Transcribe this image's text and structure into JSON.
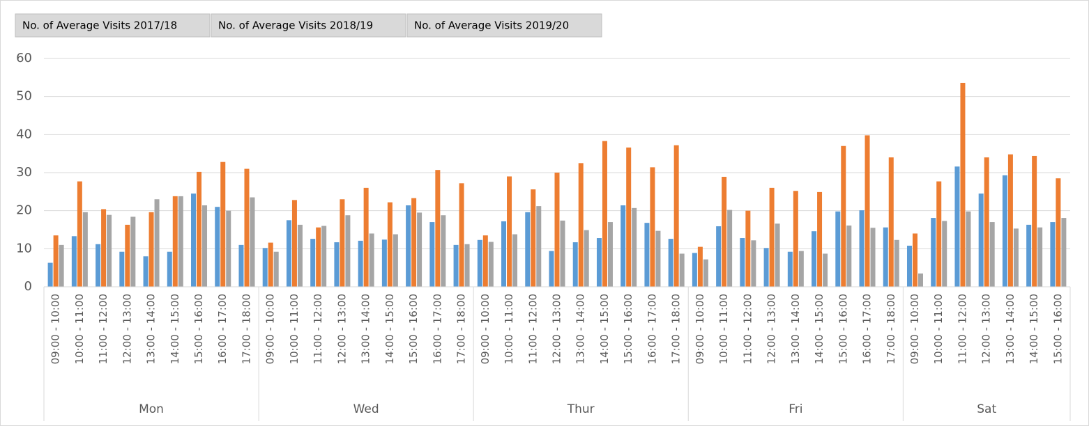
{
  "chart_data": {
    "type": "bar",
    "series": [
      {
        "name": "No. of Average Visits 2017/18",
        "color": "#5b9bd5",
        "values": [
          [
            6.3,
            13.3,
            11.2,
            9.2,
            8,
            9.2,
            24.5,
            21,
            11
          ],
          [
            10.2,
            17.5,
            12.6,
            11.7,
            12.1,
            12.4,
            21.4,
            17,
            11
          ],
          [
            12.3,
            17.2,
            19.6,
            9.4,
            11.7,
            12.8,
            21.4,
            16.8,
            12.6
          ],
          [
            8.9,
            15.9,
            12.8,
            10.2,
            9.2,
            14.6,
            19.8,
            20.1,
            15.6
          ],
          [
            10.8,
            18.1,
            31.6,
            24.5,
            29.3,
            16.3,
            17
          ]
        ]
      },
      {
        "name": "No. of Average Visits 2018/19",
        "color": "#ed7d31",
        "values": [
          [
            13.5,
            27.7,
            20.4,
            16.3,
            19.6,
            23.8,
            30.2,
            32.8,
            31
          ],
          [
            11.6,
            22.8,
            15.6,
            23,
            26,
            22.2,
            23.3,
            30.7,
            27.2
          ],
          [
            13.5,
            29,
            25.6,
            30,
            32.5,
            38.3,
            36.6,
            31.4,
            37.2
          ],
          [
            10.5,
            28.9,
            20,
            26,
            25.2,
            24.9,
            37,
            39.8,
            34
          ],
          [
            14,
            27.7,
            53.6,
            34,
            34.8,
            34.4,
            28.5
          ]
        ]
      },
      {
        "name": "No. of Average Visits 2019/20",
        "color": "#a5a5a5",
        "values": [
          [
            11,
            19.6,
            18.9,
            18.4,
            23,
            23.8,
            21.4,
            20,
            23.5
          ],
          [
            9.2,
            16.3,
            16,
            18.8,
            14,
            13.8,
            19.5,
            18.8,
            11.2
          ],
          [
            11.8,
            13.8,
            21.2,
            17.4,
            14.9,
            17,
            20.7,
            14.7,
            8.7
          ],
          [
            7.2,
            20.2,
            12.2,
            16.6,
            9.4,
            8.7,
            16.1,
            15.5,
            12.3
          ],
          [
            3.5,
            17.3,
            19.8,
            17,
            15.3,
            15.6,
            18.1
          ]
        ]
      }
    ],
    "groups": [
      {
        "name": "Mon",
        "categories": [
          "09:00 - 10:00",
          "10:00 - 11:00",
          "11:00 - 12:00",
          "12:00 - 13:00",
          "13:00 - 14:00",
          "14:00 - 15:00",
          "15:00 - 16:00",
          "16:00 - 17:00",
          "17:00 - 18:00"
        ]
      },
      {
        "name": "Wed",
        "categories": [
          "09:00 - 10:00",
          "10:00 - 11:00",
          "11:00 - 12:00",
          "12:00 - 13:00",
          "13:00 - 14:00",
          "14:00 - 15:00",
          "15:00 - 16:00",
          "16:00 - 17:00",
          "17:00 - 18:00"
        ]
      },
      {
        "name": "Thur",
        "categories": [
          "09:00 - 10:00",
          "10:00 - 11:00",
          "11:00 - 12:00",
          "12:00 - 13:00",
          "13:00 - 14:00",
          "14:00 - 15:00",
          "15:00 - 16:00",
          "16:00 - 17:00",
          "17:00 - 18:00"
        ]
      },
      {
        "name": "Fri",
        "categories": [
          "09:00 - 10:00",
          "10:00 - 11:00",
          "11:00 - 12:00",
          "12:00 - 13:00",
          "13:00 - 14:00",
          "14:00 - 15:00",
          "15:00 - 16:00",
          "16:00 - 17:00",
          "17:00 - 18:00"
        ]
      },
      {
        "name": "Sat",
        "categories": [
          "09:00 - 10:00",
          "10:00 - 11:00",
          "11:00 - 12:00",
          "12:00 - 13:00",
          "13:00 - 14:00",
          "14:00 - 15:00",
          "15:00 - 16:00"
        ]
      }
    ],
    "ylim": [
      0,
      60
    ],
    "yticks": [
      0,
      10,
      20,
      30,
      40,
      50,
      60
    ],
    "grid": true
  }
}
